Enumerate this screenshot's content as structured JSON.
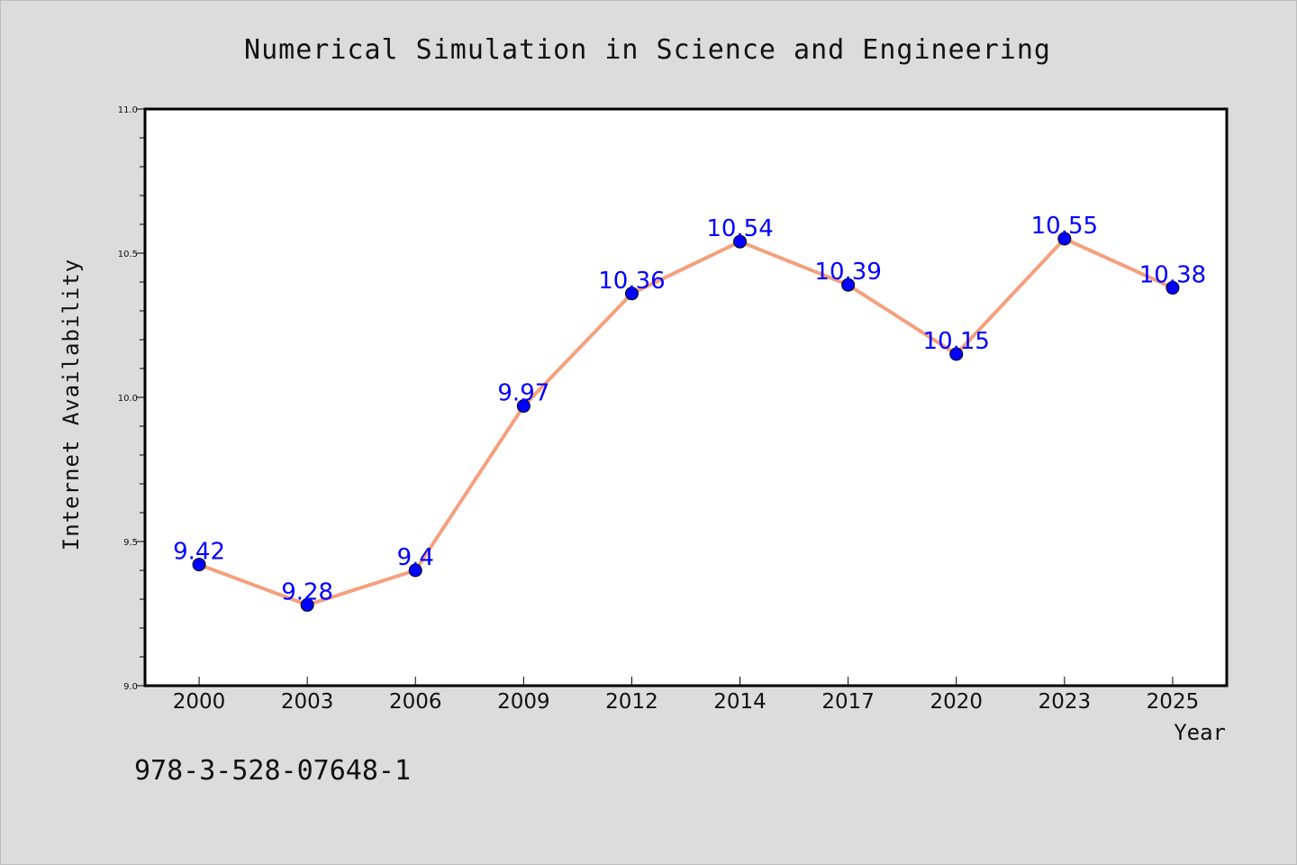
{
  "chart_data": {
    "type": "line",
    "title": "Numerical Simulation in Science and Engineering",
    "xlabel": "Year",
    "ylabel": "Internet Availability",
    "categories": [
      "2000",
      "2003",
      "2006",
      "2009",
      "2012",
      "2014",
      "2017",
      "2020",
      "2023",
      "2025"
    ],
    "series": [
      {
        "values": [
          9.42,
          9.28,
          9.4,
          9.97,
          10.36,
          10.54,
          10.39,
          10.15,
          10.55,
          10.38
        ],
        "labels": [
          "9.42",
          "9.28",
          "9.4",
          "9.97",
          "10.36",
          "10.54",
          "10.39",
          "10.15",
          "10.55",
          "10.38"
        ],
        "line_color": "#f4a07e",
        "marker_color": "#0000ff"
      }
    ],
    "ylim": [
      9.0,
      11.0
    ],
    "yticks": [
      "9.0",
      "9.5",
      "10.0",
      "10.5",
      "11.0"
    ],
    "grid": false,
    "legend": "none"
  },
  "footer": {
    "isbn": "978-3-528-07648-1"
  }
}
